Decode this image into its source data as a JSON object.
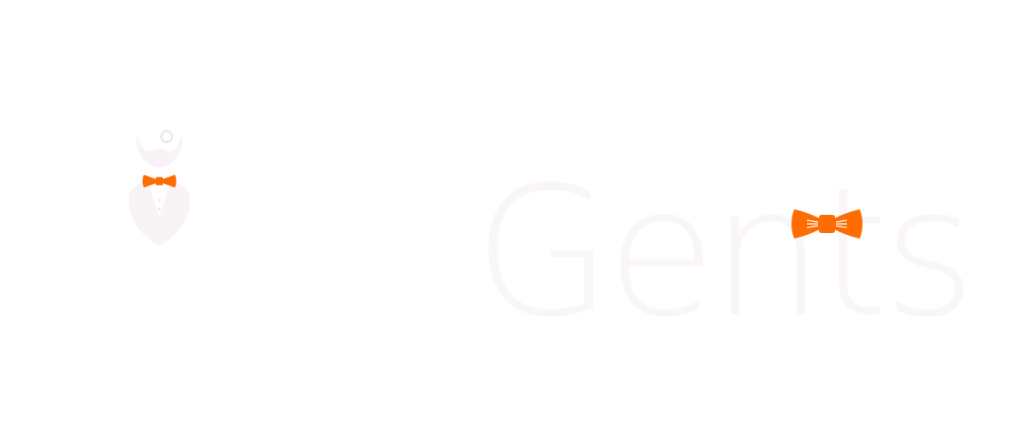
{
  "brand": {
    "wordmark": "Gents",
    "logo_icon": "gentleman-bowtie-icon",
    "accent_icon": "bowtie-icon"
  },
  "colors": {
    "accent": "#ff6d00",
    "text": "#f9f5f8",
    "figure": "#f7f3f6",
    "background": "#ffffff"
  }
}
